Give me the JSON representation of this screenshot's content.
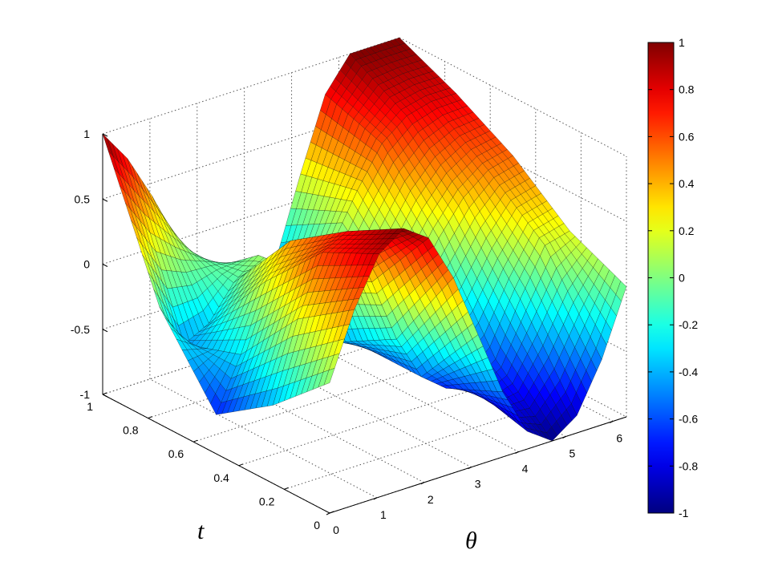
{
  "chart_data": {
    "type": "surface",
    "title": "",
    "xlabel": "θ",
    "ylabel": "t",
    "zlabel": "",
    "xlim": [
      0,
      6.2832
    ],
    "ylim": [
      0,
      1
    ],
    "zlim": [
      -1,
      1
    ],
    "x_ticks": [
      "0",
      "1",
      "2",
      "3",
      "4",
      "5",
      "6"
    ],
    "y_ticks": [
      "0",
      "0.2",
      "0.4",
      "0.6",
      "0.8",
      "1"
    ],
    "z_ticks": [
      "-1",
      "-0.5",
      "0",
      "0.5",
      "1"
    ],
    "colorbar_ticks": [
      "-1",
      "-0.8",
      "-0.6",
      "-0.4",
      "-0.2",
      "0",
      "0.2",
      "0.4",
      "0.6",
      "0.8",
      "1"
    ],
    "colormap": "jet",
    "grid": true,
    "surface": {
      "theta": [
        0,
        0.5236,
        1.0472,
        1.5708,
        2.0944,
        2.618,
        3.1416,
        3.6652,
        4.1888,
        4.7124,
        5.236,
        5.7596,
        6.2832
      ],
      "t": [
        0,
        0.25,
        0.5,
        0.75,
        1
      ],
      "z": [
        [
          0,
          0.5,
          0.866,
          1,
          0.866,
          0.5,
          0,
          -0.5,
          -0.866,
          -1,
          -0.866,
          -0.5,
          0
        ],
        [
          -0.4,
          0.2,
          0.65,
          0.75,
          0.3,
          -0.2,
          -0.55,
          -0.7,
          -0.75,
          -0.6,
          -0.2,
          0.15,
          0.2
        ],
        [
          -0.7,
          -0.3,
          0.2,
          0.45,
          0.1,
          -0.45,
          -0.55,
          -0.45,
          -0.2,
          0.1,
          0.35,
          0.5,
          0.55
        ],
        [
          -0.1,
          -0.45,
          -0.35,
          -0.1,
          0.05,
          -0.2,
          -0.3,
          -0.05,
          0.3,
          0.6,
          0.75,
          0.8,
          0.8
        ],
        [
          1,
          0.75,
          0.4,
          0,
          -0.3,
          -0.55,
          -0.7,
          -0.4,
          0.2,
          0.75,
          1,
          1,
          1
        ]
      ]
    }
  }
}
